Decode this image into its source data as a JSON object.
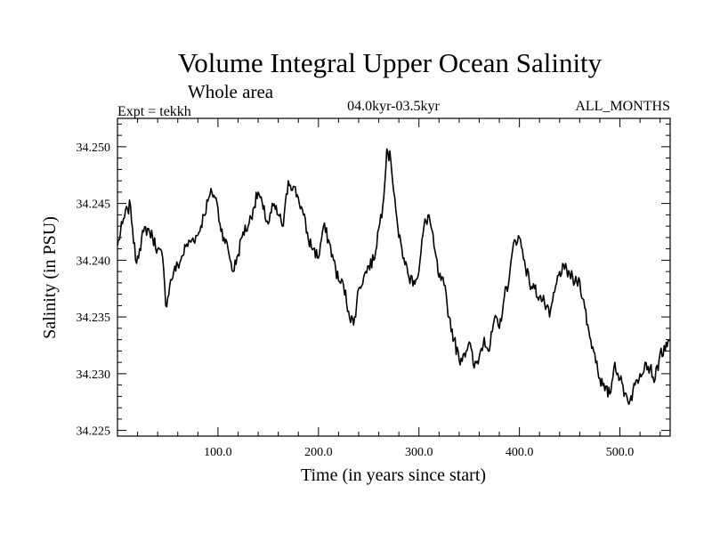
{
  "chart_data": {
    "type": "line",
    "title": "Volume Integral Upper Ocean Salinity",
    "subtitle": "Whole area",
    "experiment": "Expt = tekkh",
    "period": "04.0kyr-03.5kyr",
    "months": "ALL_MONTHS",
    "xlabel": "Time (in years since start)",
    "ylabel": "Salinity (in PSU)",
    "xlim": [
      0,
      550
    ],
    "ylim": [
      34.2245,
      34.2525
    ],
    "x_ticks": [
      100,
      200,
      300,
      400,
      500
    ],
    "x_tick_labels": [
      "100.0",
      "200.0",
      "300.0",
      "400.0",
      "500.0"
    ],
    "y_ticks": [
      34.225,
      34.23,
      34.235,
      34.24,
      34.245,
      34.25
    ],
    "y_tick_labels": [
      "34.225",
      "34.230",
      "34.235",
      "34.240",
      "34.245",
      "34.250"
    ],
    "grid": false,
    "series": [
      {
        "name": "Salinity",
        "x": [
          0,
          5,
          10,
          13,
          15,
          18,
          22,
          26,
          30,
          35,
          40,
          45,
          48,
          52,
          56,
          62,
          68,
          74,
          80,
          86,
          90,
          94,
          98,
          102,
          106,
          110,
          115,
          120,
          125,
          130,
          135,
          140,
          145,
          150,
          155,
          160,
          165,
          170,
          175,
          180,
          185,
          190,
          195,
          200,
          205,
          210,
          215,
          220,
          225,
          230,
          235,
          240,
          245,
          250,
          255,
          260,
          264,
          268,
          272,
          276,
          280,
          285,
          290,
          295,
          300,
          305,
          310,
          315,
          320,
          325,
          330,
          335,
          340,
          345,
          350,
          355,
          360,
          365,
          370,
          375,
          380,
          385,
          390,
          395,
          400,
          405,
          410,
          415,
          420,
          425,
          430,
          435,
          440,
          445,
          450,
          455,
          460,
          465,
          470,
          475,
          480,
          485,
          490,
          495,
          500,
          505,
          510,
          515,
          520,
          525,
          530,
          535,
          540,
          545,
          550
        ],
        "values": [
          34.2413,
          34.2432,
          34.2445,
          34.2448,
          34.2428,
          34.24,
          34.241,
          34.2425,
          34.2428,
          34.242,
          34.241,
          34.2402,
          34.236,
          34.2378,
          34.239,
          34.2398,
          34.2412,
          34.2418,
          34.2422,
          34.244,
          34.2452,
          34.246,
          34.2455,
          34.2432,
          34.242,
          34.241,
          34.239,
          34.2405,
          34.2425,
          34.243,
          34.2445,
          34.246,
          34.2445,
          34.2432,
          34.2448,
          34.244,
          34.243,
          34.247,
          34.2465,
          34.2455,
          34.244,
          34.2418,
          34.241,
          34.2402,
          34.243,
          34.2418,
          34.24,
          34.2382,
          34.2378,
          34.2355,
          34.2343,
          34.2375,
          34.2385,
          34.2395,
          34.24,
          34.2428,
          34.2448,
          34.2498,
          34.2488,
          34.2455,
          34.242,
          34.2402,
          34.2385,
          34.2382,
          34.239,
          34.243,
          34.244,
          34.2412,
          34.2385,
          34.2378,
          34.235,
          34.233,
          34.2312,
          34.2318,
          34.2328,
          34.2305,
          34.2315,
          34.2332,
          34.232,
          34.2348,
          34.234,
          34.2368,
          34.2385,
          34.2418,
          34.242,
          34.24,
          34.238,
          34.2375,
          34.2368,
          34.2362,
          34.235,
          34.2372,
          34.239,
          34.2392,
          34.2388,
          34.238,
          34.2382,
          34.2358,
          34.2332,
          34.2318,
          34.2296,
          34.2285,
          34.2282,
          34.231,
          34.2295,
          34.2283,
          34.2276,
          34.229,
          34.23,
          34.231,
          34.2305,
          34.2295,
          34.2318,
          34.232,
          34.233
        ]
      }
    ]
  }
}
